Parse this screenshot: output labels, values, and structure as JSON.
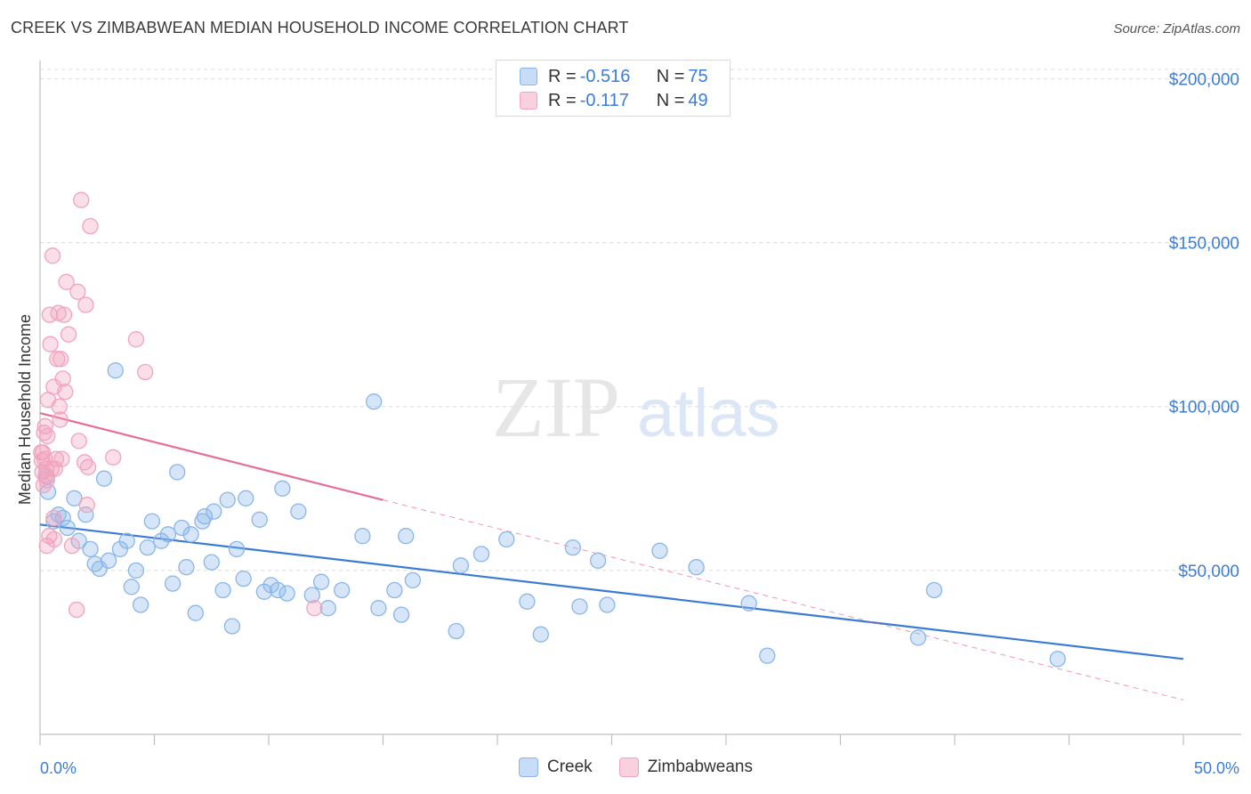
{
  "title": "CREEK VS ZIMBABWEAN MEDIAN HOUSEHOLD INCOME CORRELATION CHART",
  "source": "Source: ZipAtlas.com",
  "watermark": {
    "zip": "ZIP",
    "atlas": "atlas"
  },
  "legend": [
    {
      "r_label": "R = ",
      "r_value": "-0.516",
      "n_label": "N = ",
      "n_value": "75",
      "color": "#8ab6ea"
    },
    {
      "r_label": "R = ",
      "r_value": "-0.117",
      "n_label": "N = ",
      "n_value": "49",
      "color": "#f2a3bd"
    }
  ],
  "bottom_legend": [
    {
      "label": "Creek",
      "color": "#8ab6ea"
    },
    {
      "label": "Zimbabweans",
      "color": "#f2a3bd"
    }
  ],
  "chart_data": {
    "type": "scatter",
    "xlabel": "",
    "ylabel": "Median Household Income",
    "xlim": [
      0,
      50
    ],
    "ylim": [
      0,
      205000
    ],
    "x_tick_labels": [
      "0.0%",
      "50.0%"
    ],
    "y_ticks": [
      50000,
      100000,
      150000,
      200000
    ],
    "y_tick_labels": [
      "$50,000",
      "$100,000",
      "$150,000",
      "$200,000"
    ],
    "series": [
      {
        "name": "Creek",
        "color": "#3a7bd5",
        "fill": "#8ab6ea",
        "trend": {
          "x0": 0,
          "y0": 64000,
          "x1": 50,
          "y1": 23000,
          "dashed": false
        },
        "points": [
          [
            0.3,
            78500
          ],
          [
            0.35,
            74000
          ],
          [
            0.6,
            65000
          ],
          [
            0.8,
            67000
          ],
          [
            1.0,
            66000
          ],
          [
            1.2,
            63000
          ],
          [
            1.5,
            72000
          ],
          [
            1.7,
            59000
          ],
          [
            2.0,
            67000
          ],
          [
            2.2,
            56500
          ],
          [
            2.4,
            52000
          ],
          [
            2.6,
            50500
          ],
          [
            2.8,
            78000
          ],
          [
            3.0,
            53000
          ],
          [
            3.3,
            111000
          ],
          [
            3.5,
            56500
          ],
          [
            3.8,
            59000
          ],
          [
            4.0,
            45000
          ],
          [
            4.2,
            50000
          ],
          [
            4.4,
            39500
          ],
          [
            4.7,
            57000
          ],
          [
            4.9,
            65000
          ],
          [
            5.3,
            59000
          ],
          [
            5.6,
            61000
          ],
          [
            5.8,
            46000
          ],
          [
            6.0,
            80000
          ],
          [
            6.2,
            63000
          ],
          [
            6.4,
            51000
          ],
          [
            6.6,
            61000
          ],
          [
            6.8,
            37000
          ],
          [
            7.1,
            65000
          ],
          [
            7.2,
            66500
          ],
          [
            7.5,
            52500
          ],
          [
            7.6,
            68000
          ],
          [
            8.0,
            44000
          ],
          [
            8.2,
            71500
          ],
          [
            8.4,
            33000
          ],
          [
            8.6,
            56500
          ],
          [
            8.9,
            47500
          ],
          [
            9.0,
            72000
          ],
          [
            9.6,
            65500
          ],
          [
            9.8,
            43500
          ],
          [
            10.1,
            45500
          ],
          [
            10.4,
            44000
          ],
          [
            10.6,
            75000
          ],
          [
            10.8,
            43000
          ],
          [
            11.3,
            68000
          ],
          [
            11.9,
            42500
          ],
          [
            12.3,
            46500
          ],
          [
            12.6,
            38500
          ],
          [
            13.2,
            44000
          ],
          [
            14.1,
            60500
          ],
          [
            14.6,
            101500
          ],
          [
            14.8,
            38500
          ],
          [
            15.5,
            44000
          ],
          [
            15.8,
            36500
          ],
          [
            16.0,
            60500
          ],
          [
            16.3,
            47000
          ],
          [
            18.2,
            31500
          ],
          [
            18.4,
            51500
          ],
          [
            19.3,
            55000
          ],
          [
            20.4,
            59500
          ],
          [
            21.3,
            40500
          ],
          [
            21.9,
            30500
          ],
          [
            23.3,
            57000
          ],
          [
            23.6,
            39000
          ],
          [
            24.4,
            53000
          ],
          [
            24.8,
            39500
          ],
          [
            27.1,
            56000
          ],
          [
            28.7,
            51000
          ],
          [
            31.0,
            40000
          ],
          [
            31.8,
            24000
          ],
          [
            38.4,
            29500
          ],
          [
            39.1,
            44000
          ],
          [
            44.5,
            23000
          ]
        ]
      },
      {
        "name": "Zimbabweans",
        "color": "#e86d95",
        "fill": "#f2a3bd",
        "trend": {
          "x0": 0,
          "y0": 98000,
          "x1": 15,
          "y1": 71500,
          "dashed": false,
          "extend_dashed_to_x": 50,
          "extend_y": 10500
        },
        "points": [
          [
            0.1,
            80000
          ],
          [
            0.12,
            86000
          ],
          [
            0.15,
            76000
          ],
          [
            0.18,
            92000
          ],
          [
            0.2,
            84000
          ],
          [
            0.22,
            94000
          ],
          [
            0.25,
            79000
          ],
          [
            0.28,
            81000
          ],
          [
            0.3,
            57500
          ],
          [
            0.32,
            91000
          ],
          [
            0.35,
            102000
          ],
          [
            0.4,
            60500
          ],
          [
            0.42,
            128000
          ],
          [
            0.45,
            119000
          ],
          [
            0.5,
            81000
          ],
          [
            0.55,
            146000
          ],
          [
            0.6,
            106000
          ],
          [
            0.62,
            59500
          ],
          [
            0.65,
            81000
          ],
          [
            0.7,
            84000
          ],
          [
            0.75,
            114500
          ],
          [
            0.8,
            128500
          ],
          [
            0.85,
            100000
          ],
          [
            0.88,
            96000
          ],
          [
            0.9,
            114500
          ],
          [
            0.95,
            84000
          ],
          [
            1.0,
            108500
          ],
          [
            1.05,
            128000
          ],
          [
            1.1,
            104500
          ],
          [
            1.15,
            138000
          ],
          [
            1.25,
            122000
          ],
          [
            1.6,
            38000
          ],
          [
            1.65,
            135000
          ],
          [
            1.7,
            89500
          ],
          [
            1.8,
            163000
          ],
          [
            1.95,
            83000
          ],
          [
            2.0,
            131000
          ],
          [
            2.05,
            70000
          ],
          [
            2.1,
            81500
          ],
          [
            2.2,
            155000
          ],
          [
            3.2,
            84500
          ],
          [
            4.2,
            120500
          ],
          [
            4.6,
            110500
          ],
          [
            12.0,
            38500
          ],
          [
            0.05,
            86000
          ],
          [
            0.08,
            83500
          ],
          [
            0.6,
            66000
          ],
          [
            1.4,
            57500
          ],
          [
            0.3,
            77500
          ]
        ]
      }
    ]
  }
}
